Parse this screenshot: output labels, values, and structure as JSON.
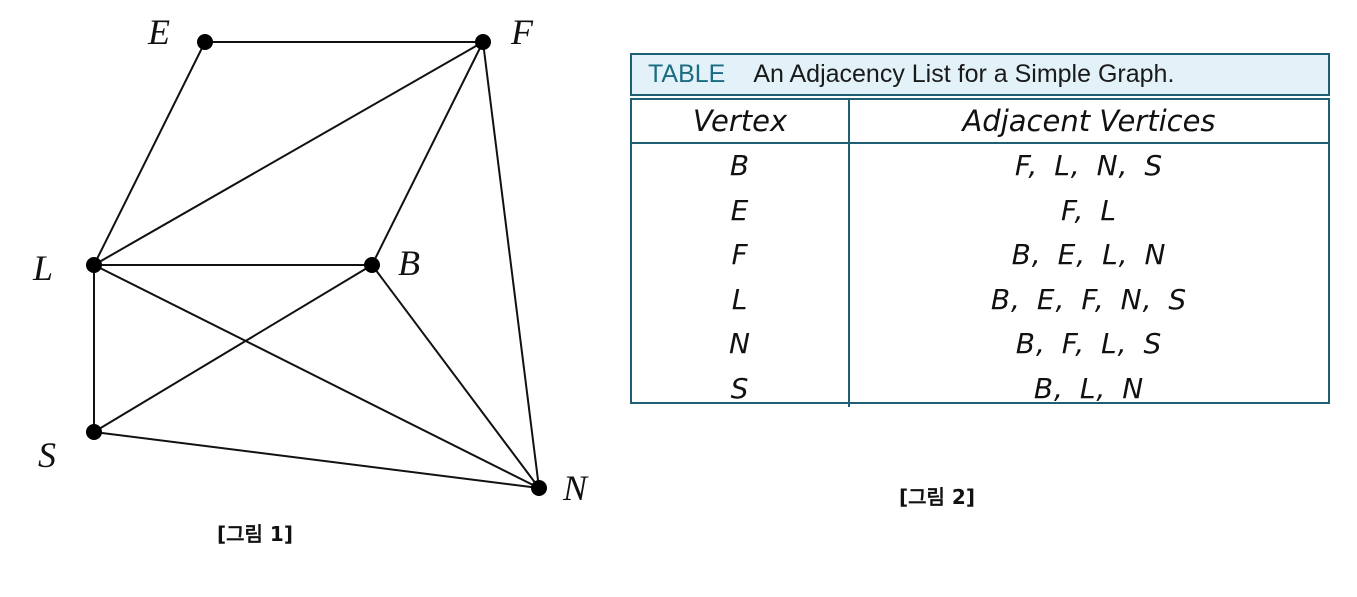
{
  "figure1": {
    "vertices": [
      {
        "id": "E",
        "label": "E"
      },
      {
        "id": "F",
        "label": "F"
      },
      {
        "id": "L",
        "label": "L"
      },
      {
        "id": "B",
        "label": "B"
      },
      {
        "id": "S",
        "label": "S"
      },
      {
        "id": "N",
        "label": "N"
      }
    ],
    "edges": [
      [
        "E",
        "F"
      ],
      [
        "E",
        "L"
      ],
      [
        "F",
        "L"
      ],
      [
        "F",
        "B"
      ],
      [
        "F",
        "N"
      ],
      [
        "L",
        "B"
      ],
      [
        "L",
        "S"
      ],
      [
        "L",
        "N"
      ],
      [
        "B",
        "S"
      ],
      [
        "B",
        "N"
      ],
      [
        "S",
        "N"
      ]
    ],
    "caption": "[그림 1]"
  },
  "figure2": {
    "title_tag": "TABLE",
    "title_text": "An Adjacency List for a Simple Graph.",
    "headers": {
      "vertex": "Vertex",
      "adjacent": "Adjacent Vertices"
    },
    "rows": [
      {
        "vertex": "B",
        "adjacent": "F, L, N, S"
      },
      {
        "vertex": "E",
        "adjacent": "F, L"
      },
      {
        "vertex": "F",
        "adjacent": "B, E, L, N"
      },
      {
        "vertex": "L",
        "adjacent": "B, E, F, N, S"
      },
      {
        "vertex": "N",
        "adjacent": "B, F, L, S"
      },
      {
        "vertex": "S",
        "adjacent": "B, L, N"
      }
    ],
    "caption": "[그림 2]"
  },
  "colors": {
    "table_border": "#1f5f73",
    "title_background": "#e2f2f8",
    "title_tag": "#1b6b82"
  }
}
